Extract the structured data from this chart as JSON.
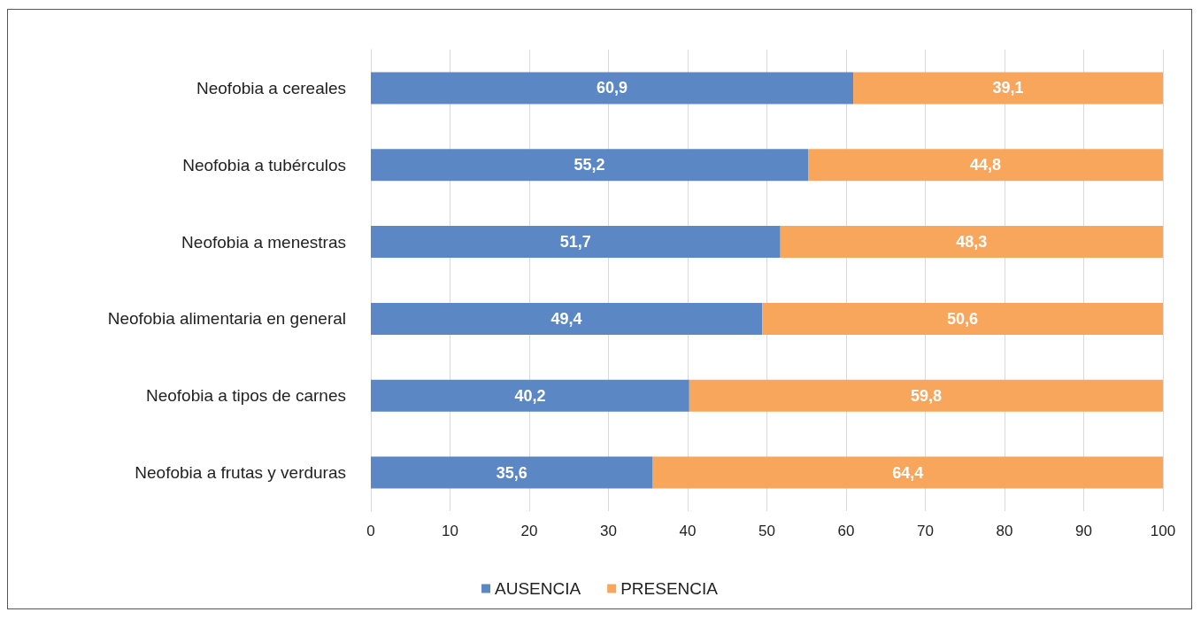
{
  "chart_data": {
    "type": "bar",
    "orientation": "horizontal",
    "stacked": true,
    "categories": [
      "Neofobia a cereales",
      "Neofobia a tubérculos",
      "Neofobia a menestras",
      "Neofobia alimentaria en general",
      "Neofobia a tipos de carnes",
      "Neofobia a frutas y verduras"
    ],
    "series": [
      {
        "name": "AUSENCIA",
        "color": "#5b87c5",
        "values": [
          60.9,
          55.2,
          51.7,
          49.4,
          40.2,
          35.6
        ],
        "value_labels": [
          "60,9",
          "55,2",
          "51,7",
          "49,4",
          "40,2",
          "35,6"
        ]
      },
      {
        "name": "PRESENCIA",
        "color": "#f7a65c",
        "values": [
          39.1,
          44.8,
          48.3,
          50.6,
          59.8,
          64.4
        ],
        "value_labels": [
          "39,1",
          "44,8",
          "48,3",
          "50,6",
          "59,8",
          "64,4"
        ]
      }
    ],
    "xlim": [
      0,
      100
    ],
    "xticks": [
      0,
      10,
      20,
      30,
      40,
      50,
      60,
      70,
      80,
      90,
      100
    ],
    "grid": "x",
    "legend": "bottom"
  }
}
